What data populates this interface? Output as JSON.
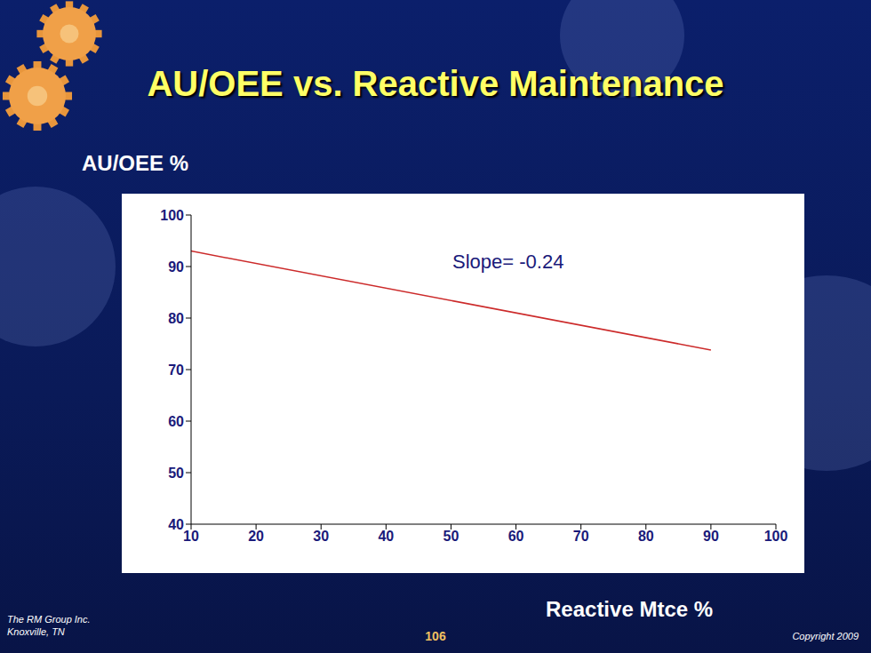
{
  "chart_data": {
    "type": "line",
    "title": "AU/OEE vs. Reactive Maintenance",
    "y_label": "AU/OEE %",
    "x_label": "Reactive Mtce %",
    "annotation": "Slope= -0.24",
    "x": [
      10,
      90
    ],
    "values": [
      93,
      73.8
    ],
    "color": "#cc2a2a",
    "xlim": [
      10,
      100
    ],
    "xticks": [
      10,
      20,
      30,
      40,
      50,
      60,
      70,
      80,
      90,
      100
    ],
    "ylim": [
      40,
      100
    ],
    "yticks": [
      40,
      50,
      60,
      70,
      80,
      90,
      100
    ],
    "grid": false
  },
  "footer": {
    "left": [
      "The RM Group Inc.",
      "Knoxville, TN"
    ],
    "page": "106",
    "right": "Copyright 2009"
  }
}
